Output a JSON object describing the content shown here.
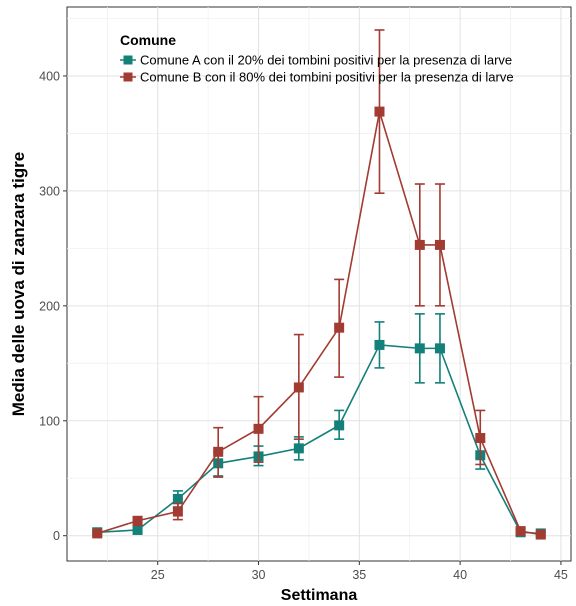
{
  "chart_data": {
    "type": "line",
    "xlabel": "Settimana",
    "ylabel": "Media delle uova di zanzara tigre",
    "xlim": [
      20.5,
      45.5
    ],
    "ylim": [
      -22,
      460
    ],
    "xticks": [
      25,
      30,
      35,
      40,
      45
    ],
    "yticks": [
      0,
      100,
      200,
      300,
      400
    ],
    "grid": true,
    "legend": {
      "title": "Comune",
      "position": "top-right"
    },
    "series": [
      {
        "name": "Comune A con il 20% dei tombini positivi per la presenza di larve",
        "color": "#14807a",
        "x": [
          22,
          24,
          26,
          28,
          30,
          32,
          34,
          36,
          38,
          39,
          41,
          43,
          44
        ],
        "y": [
          3,
          5,
          32,
          63,
          69,
          76,
          96,
          166,
          163,
          163,
          70,
          3,
          2
        ],
        "err_low": [
          0,
          0,
          25,
          52,
          61,
          66,
          84,
          146,
          133,
          133,
          58,
          0,
          0
        ],
        "err_high": [
          0,
          0,
          39,
          73,
          78,
          86,
          109,
          186,
          193,
          193,
          82,
          0,
          0
        ]
      },
      {
        "name": "Comune B con il 80% dei tombini positivi per la presenza di larve",
        "color": "#a23b32",
        "x": [
          22,
          24,
          26,
          28,
          30,
          32,
          34,
          36,
          38,
          39,
          41,
          43,
          44
        ],
        "y": [
          2,
          13,
          21,
          73,
          93,
          129,
          181,
          369,
          253,
          253,
          85,
          4,
          1
        ],
        "err_low": [
          0,
          9,
          14,
          51,
          64,
          84,
          138,
          298,
          200,
          200,
          62,
          0,
          0
        ],
        "err_high": [
          0,
          16,
          28,
          94,
          121,
          175,
          223,
          440,
          306,
          306,
          109,
          0,
          0
        ]
      }
    ]
  }
}
